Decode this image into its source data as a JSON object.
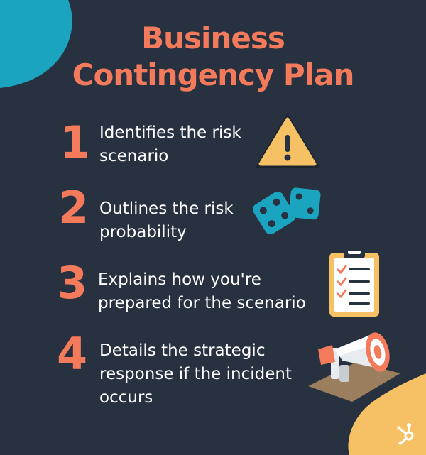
{
  "title": {
    "line1": "Business",
    "line2": "Contingency Plan"
  },
  "items": [
    {
      "number": "1",
      "line1": "Identifies the risk",
      "line2": "scenario",
      "icon": "warning-icon"
    },
    {
      "number": "2",
      "line1": "Outlines the risk",
      "line2": "probability",
      "icon": "dice-icon"
    },
    {
      "number": "3",
      "line1": "Explains how you're",
      "line2": "prepared for the scenario",
      "icon": "clipboard-checklist-icon"
    },
    {
      "number": "4",
      "line1": "Details the strategic",
      "line2": "response if the incident",
      "line3": "occurs",
      "icon": "megaphone-icon"
    }
  ],
  "colors": {
    "background": "#27313f",
    "accent": "#f37a5b",
    "teal": "#1ba4c0",
    "yellow": "#f5c164"
  },
  "logo": "hubspot-logo"
}
